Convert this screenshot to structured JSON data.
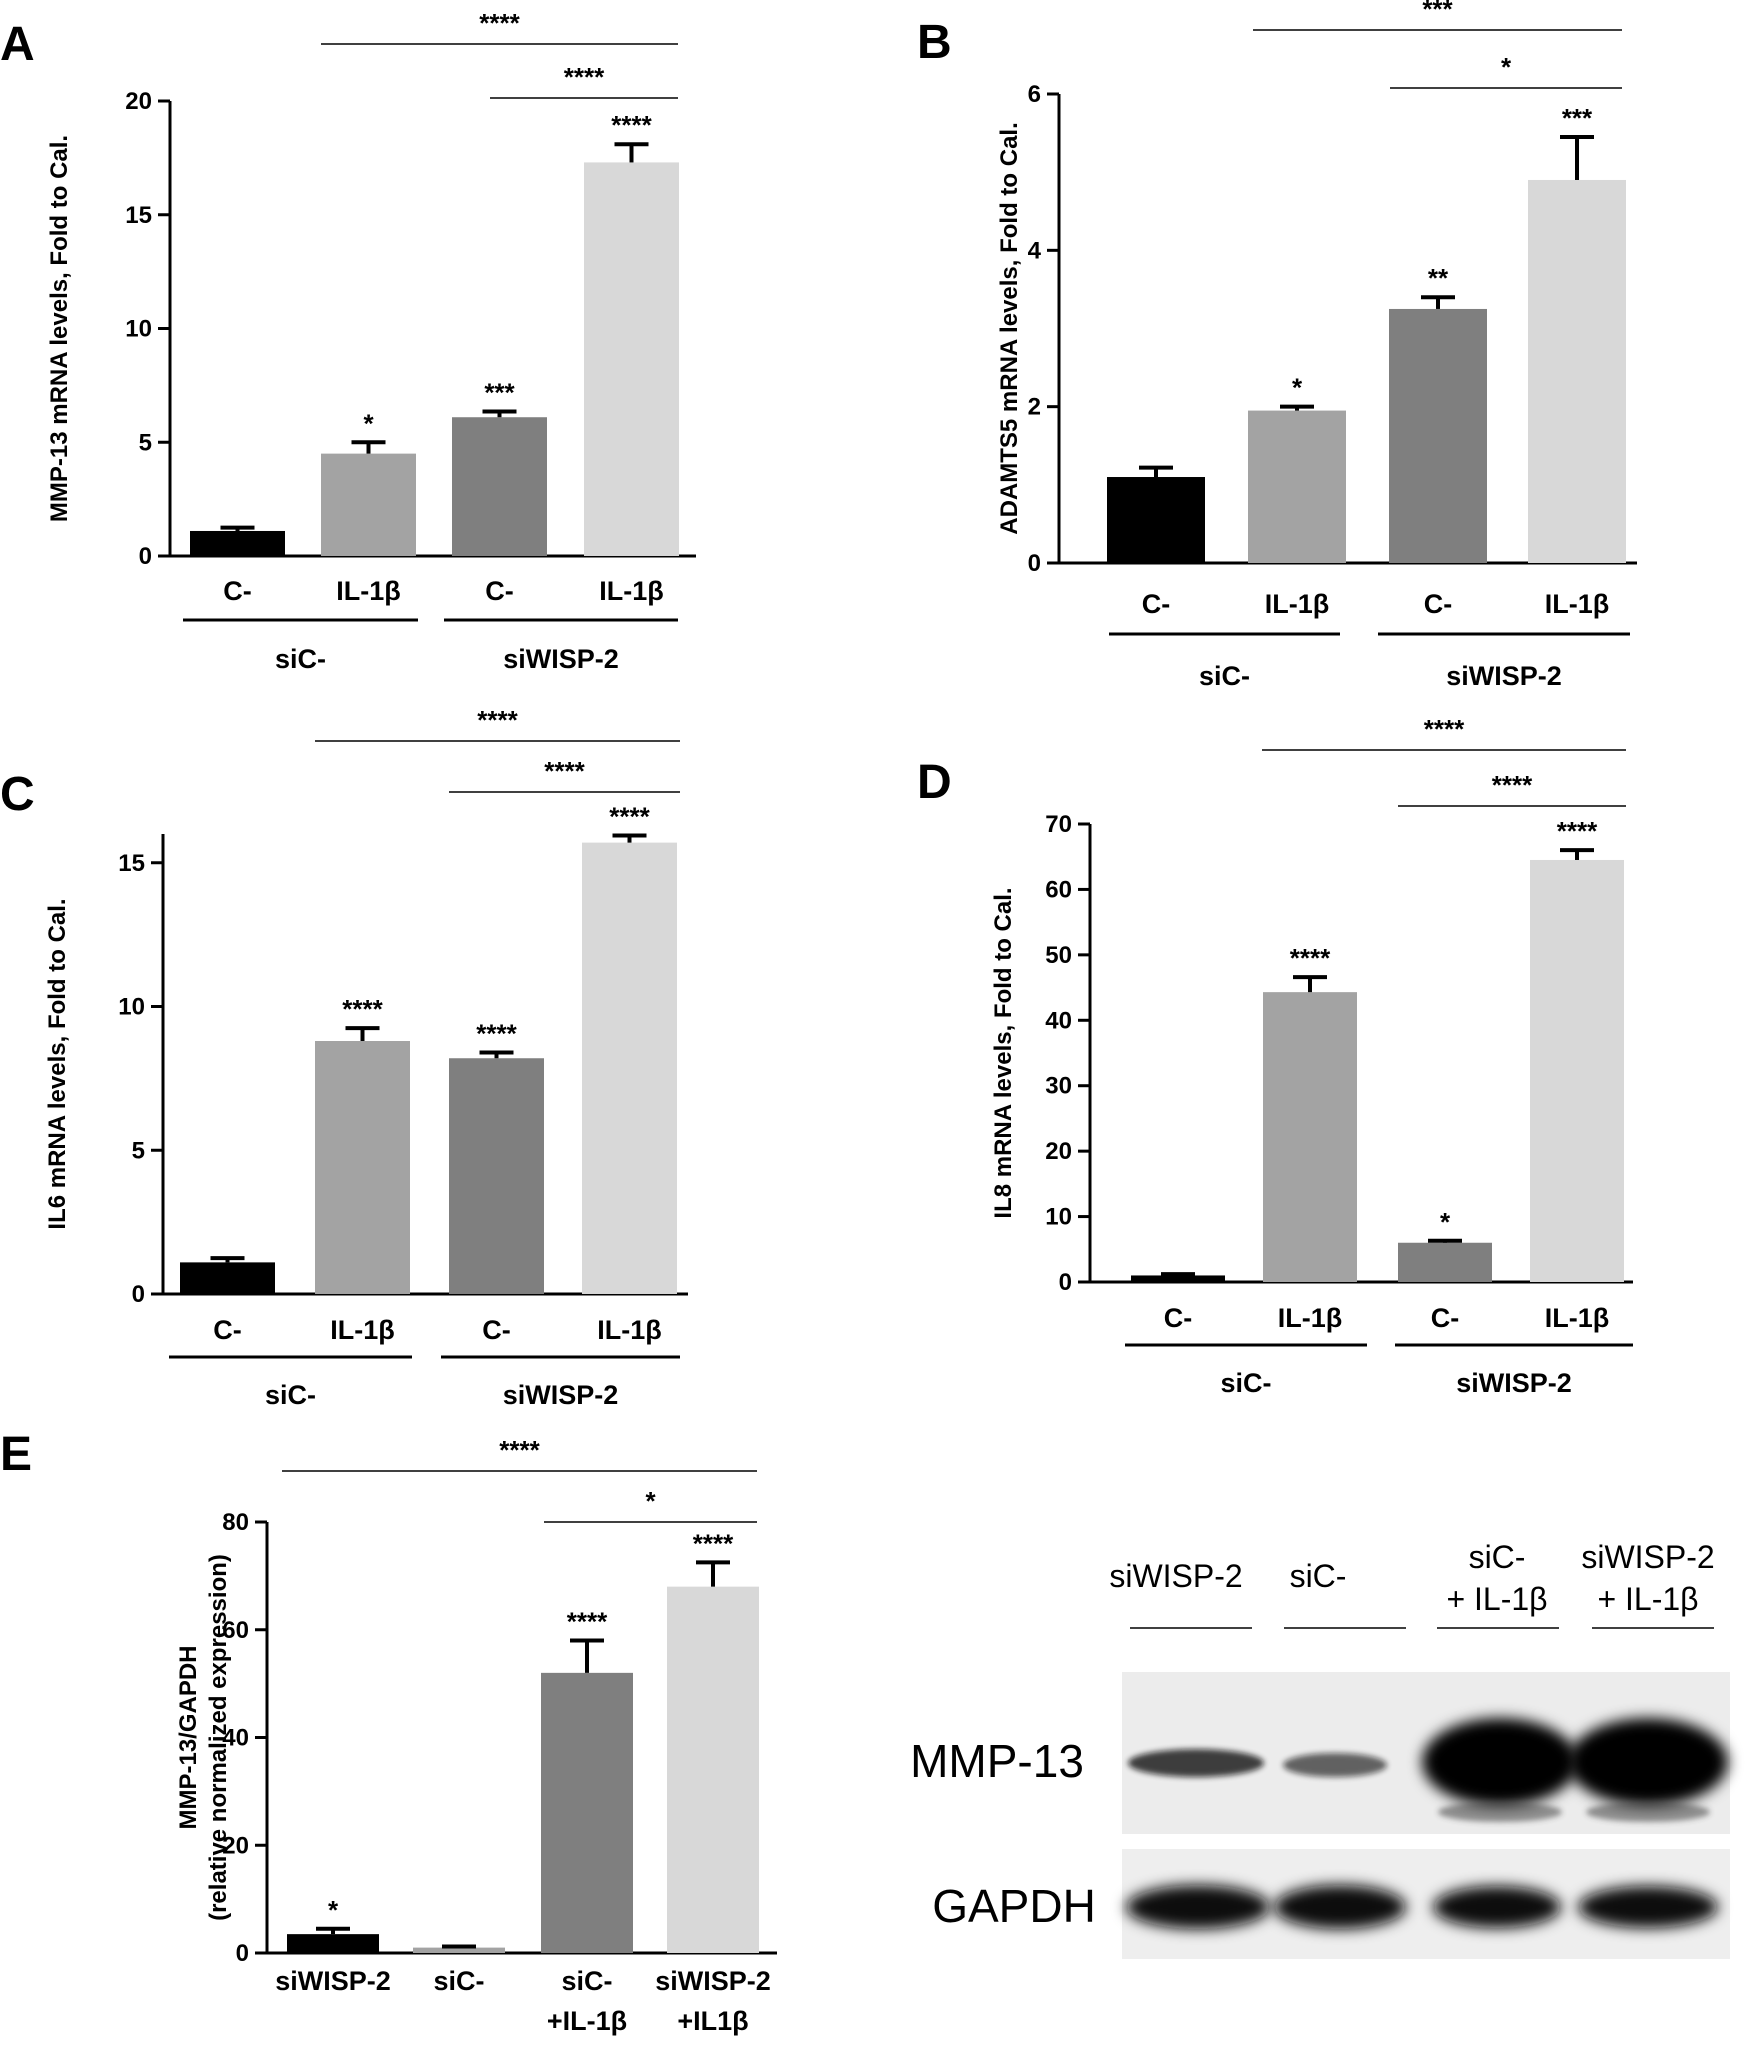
{
  "panels": [
    {
      "label": "A",
      "ylabel": "MMP-13 mRNA levels, Fold to Cal.",
      "ymax": 20,
      "ticks": [
        "0",
        "5",
        "10",
        "15",
        "20"
      ],
      "groups": [
        "siC-",
        "siWISP-2"
      ],
      "brackets": [
        {
          "text": "****"
        },
        {
          "text": "****"
        }
      ]
    },
    {
      "label": "B",
      "ylabel": "ADAMTS5 mRNA levels, Fold to Cal.",
      "ymax": 6,
      "ticks": [
        "0",
        "2",
        "4",
        "6"
      ],
      "groups": [
        "siC-",
        "siWISP-2"
      ],
      "brackets": [
        {
          "text": "***"
        },
        {
          "text": "*"
        }
      ]
    },
    {
      "label": "C",
      "ylabel": "IL6 mRNA levels, Fold to Cal.",
      "ymax": 16,
      "ticks": [
        "0",
        "5",
        "10",
        "15"
      ],
      "groups": [
        "siC-",
        "siWISP-2"
      ],
      "brackets": [
        {
          "text": "****"
        },
        {
          "text": "****"
        }
      ]
    },
    {
      "label": "D",
      "ylabel": "IL8 mRNA levels, Fold to Cal.",
      "ymax": 70,
      "ticks": [
        "0",
        "10",
        "20",
        "30",
        "40",
        "50",
        "60",
        "70"
      ],
      "groups": [
        "siC-",
        "siWISP-2"
      ],
      "brackets": [
        {
          "text": "****"
        },
        {
          "text": "****"
        }
      ]
    },
    {
      "label": "E",
      "ylabel": "MMP-13/GAPDH",
      "ylabel2": "(relative normalized expression)",
      "ymax": 80,
      "ticks": [
        "0",
        "20",
        "40",
        "60",
        "80"
      ],
      "brackets": [
        {
          "text": "****"
        },
        {
          "text": "*"
        }
      ]
    }
  ],
  "colors": {
    "bars": [
      "#000000",
      "#a3a3a3",
      "#7f7f7f",
      "#d8d8d8"
    ],
    "axis": "#000000"
  },
  "chart_data": [
    {
      "type": "bar",
      "panel": "A",
      "categories": [
        "C-",
        "IL-1β",
        "C-",
        "IL-1β"
      ],
      "groups": [
        "siC-",
        "siC-",
        "siWISP-2",
        "siWISP-2"
      ],
      "values": [
        1.1,
        4.5,
        6.1,
        17.3
      ],
      "errors": [
        0.15,
        0.5,
        0.25,
        0.8
      ],
      "significance": [
        "",
        "*",
        "***",
        "****"
      ],
      "ylabel": "MMP-13 mRNA levels, Fold to Cal.",
      "ylim": [
        0,
        20
      ]
    },
    {
      "type": "bar",
      "panel": "B",
      "categories": [
        "C-",
        "IL-1β",
        "C-",
        "IL-1β"
      ],
      "groups": [
        "siC-",
        "siC-",
        "siWISP-2",
        "siWISP-2"
      ],
      "values": [
        1.1,
        1.95,
        3.25,
        4.9
      ],
      "errors": [
        0.12,
        0.05,
        0.15,
        0.55
      ],
      "significance": [
        "",
        "*",
        "**",
        "***"
      ],
      "ylabel": "ADAMTS5 mRNA levels, Fold to Cal.",
      "ylim": [
        0,
        6
      ]
    },
    {
      "type": "bar",
      "panel": "C",
      "categories": [
        "C-",
        "IL-1β",
        "C-",
        "IL-1β"
      ],
      "groups": [
        "siC-",
        "siC-",
        "siWISP-2",
        "siWISP-2"
      ],
      "values": [
        1.1,
        8.8,
        8.2,
        15.7
      ],
      "errors": [
        0.15,
        0.45,
        0.2,
        0.25
      ],
      "significance": [
        "",
        "****",
        "****",
        "****"
      ],
      "ylabel": "IL6 mRNA levels, Fold to Cal.",
      "ylim": [
        0,
        16
      ]
    },
    {
      "type": "bar",
      "panel": "D",
      "categories": [
        "C-",
        "IL-1β",
        "C-",
        "IL-1β"
      ],
      "groups": [
        "siC-",
        "siC-",
        "siWISP-2",
        "siWISP-2"
      ],
      "values": [
        1.0,
        44.3,
        6.0,
        64.5
      ],
      "errors": [
        0.2,
        2.3,
        0.3,
        1.5
      ],
      "significance": [
        "",
        "****",
        "*",
        "****"
      ],
      "ylabel": "IL8 mRNA levels, Fold to Cal.",
      "ylim": [
        0,
        70
      ]
    },
    {
      "type": "bar",
      "panel": "E",
      "categories": [
        {
          "line1": "siWISP-2",
          "line2": ""
        },
        {
          "line1": "siC-",
          "line2": ""
        },
        {
          "line1": "siC-",
          "line2": "+IL-1β"
        },
        {
          "line1": "siWISP-2",
          "line2": "+IL1β"
        }
      ],
      "values": [
        3.5,
        1.0,
        52.0,
        68.0
      ],
      "errors": [
        1.0,
        0.2,
        6.0,
        4.5
      ],
      "significance": [
        "*",
        "",
        "****",
        "****"
      ],
      "ylabel": "MMP-13/GAPDH (relative normalized expression)",
      "ylim": [
        0,
        80
      ]
    }
  ],
  "blot": {
    "lanes": [
      {
        "line1": "siWISP-2",
        "line2": ""
      },
      {
        "line1": "siC-",
        "line2": ""
      },
      {
        "line1": "siC-",
        "line2": "+ IL-1β"
      },
      {
        "line1": "siWISP-2",
        "line2": "+ IL-1β"
      }
    ],
    "rows": [
      {
        "label": "MMP-13",
        "intensities": [
          0.55,
          0.45,
          1.0,
          1.0
        ]
      },
      {
        "label": "GAPDH",
        "intensities": [
          0.9,
          0.9,
          0.85,
          0.85
        ]
      }
    ]
  }
}
